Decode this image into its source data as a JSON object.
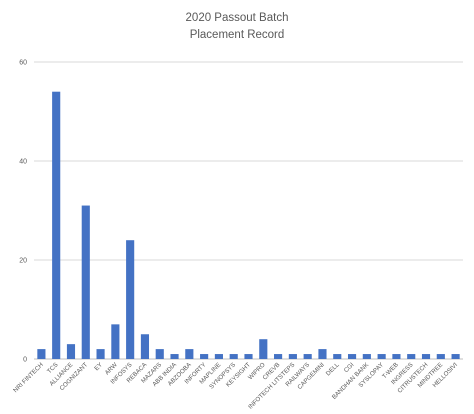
{
  "chart_data": {
    "type": "bar",
    "title": "2020 Passout Batch",
    "subtitle": "Placement Record",
    "xlabel": "",
    "ylabel": "",
    "ylim": [
      0,
      60
    ],
    "yticks": [
      0,
      20,
      40,
      60
    ],
    "grid": true,
    "legend": "none",
    "categories": [
      "NRI FINTECH",
      "TCS",
      "ALLIANCE",
      "COGNIZANT",
      "EY",
      "ARW",
      "INFOSYS",
      "REBACA",
      "MAZARS",
      "ABB INDIA",
      "ABZOOBA",
      "INFORTY",
      "MAPLINE",
      "SYNOPSYS",
      "KEYSIGHT",
      "WIPRO",
      "CREVB",
      "INFOTECH LITSTEPS",
      "RAILWAYS",
      "CAPGEMINI",
      "DELL",
      "CGI",
      "BANDHAN BANK",
      "SYSLOPAY",
      "T-WEB",
      "INGRESS",
      "CITRUSTECH",
      "MINDTREE",
      "HELLOSIVI"
    ],
    "values": [
      2,
      54,
      3,
      31,
      2,
      7,
      24,
      5,
      2,
      1,
      2,
      1,
      1,
      1,
      1,
      4,
      1,
      1,
      1,
      2,
      1,
      1,
      1,
      1,
      1,
      1,
      1,
      1,
      1
    ],
    "colors": {
      "bar": "#4472c4",
      "grid": "#d9d9d9",
      "text": "#595959",
      "axis": "#bfbfbf"
    }
  }
}
